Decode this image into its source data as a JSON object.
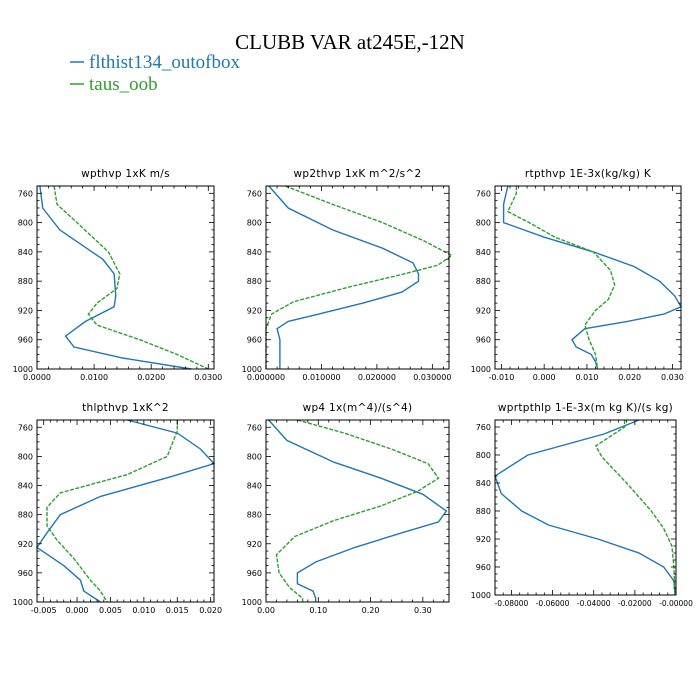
{
  "figure": {
    "title": "CLUBB VAR at245E,-12N",
    "colors": {
      "series_1": "#1f77b4",
      "series_2": "#2ca02c"
    },
    "legend": [
      "flthist134_outofbox",
      "taus_oob"
    ]
  },
  "chart_data": [
    {
      "type": "line",
      "title": "wpthvp   1xK m/s",
      "y_ticks": [
        760,
        800,
        840,
        880,
        920,
        960,
        1000
      ],
      "y_range": [
        1000,
        750
      ],
      "x_range": [
        0.0,
        0.031
      ],
      "x_ticks": [
        0.0,
        0.01,
        0.02,
        0.03
      ],
      "x_tick_labels": [
        "0.0000",
        "0.0100",
        "0.0200",
        "0.0300"
      ],
      "series": [
        {
          "values": [
            {
              "x": 0.0005,
              "y": 750
            },
            {
              "x": 0.001,
              "y": 780
            },
            {
              "x": 0.004,
              "y": 810
            },
            {
              "x": 0.0115,
              "y": 850
            },
            {
              "x": 0.0135,
              "y": 870
            },
            {
              "x": 0.0138,
              "y": 900
            },
            {
              "x": 0.0135,
              "y": 915
            },
            {
              "x": 0.0085,
              "y": 935
            },
            {
              "x": 0.005,
              "y": 955
            },
            {
              "x": 0.0065,
              "y": 970
            },
            {
              "x": 0.015,
              "y": 985
            },
            {
              "x": 0.027,
              "y": 1000
            }
          ]
        },
        {
          "values": [
            {
              "x": 0.003,
              "y": 750
            },
            {
              "x": 0.0035,
              "y": 775
            },
            {
              "x": 0.007,
              "y": 800
            },
            {
              "x": 0.0125,
              "y": 840
            },
            {
              "x": 0.0145,
              "y": 870
            },
            {
              "x": 0.014,
              "y": 890
            },
            {
              "x": 0.0105,
              "y": 910
            },
            {
              "x": 0.009,
              "y": 925
            },
            {
              "x": 0.0105,
              "y": 940
            },
            {
              "x": 0.018,
              "y": 960
            },
            {
              "x": 0.0245,
              "y": 980
            },
            {
              "x": 0.03,
              "y": 1000
            }
          ]
        }
      ]
    },
    {
      "type": "line",
      "title": "wp2thvp   1xK m^2/s^2",
      "y_ticks": [
        760,
        800,
        840,
        880,
        920,
        960,
        1000
      ],
      "y_range": [
        1000,
        750
      ],
      "x_range": [
        0.0,
        0.033
      ],
      "x_ticks": [
        0.0,
        0.01,
        0.02,
        0.03
      ],
      "x_tick_labels": [
        "0.000000",
        "0.010000",
        "0.020000",
        "0.030000"
      ],
      "series": [
        {
          "values": [
            {
              "x": 0.0005,
              "y": 750
            },
            {
              "x": 0.004,
              "y": 780
            },
            {
              "x": 0.012,
              "y": 810
            },
            {
              "x": 0.021,
              "y": 835
            },
            {
              "x": 0.0265,
              "y": 855
            },
            {
              "x": 0.0275,
              "y": 870
            },
            {
              "x": 0.0275,
              "y": 880
            },
            {
              "x": 0.0245,
              "y": 895
            },
            {
              "x": 0.0175,
              "y": 910
            },
            {
              "x": 0.0095,
              "y": 925
            },
            {
              "x": 0.004,
              "y": 935
            },
            {
              "x": 0.002,
              "y": 945
            },
            {
              "x": 0.0025,
              "y": 960
            },
            {
              "x": 0.0025,
              "y": 980
            },
            {
              "x": 0.0025,
              "y": 1000
            }
          ]
        },
        {
          "values": [
            {
              "x": 0.0035,
              "y": 750
            },
            {
              "x": 0.012,
              "y": 775
            },
            {
              "x": 0.021,
              "y": 800
            },
            {
              "x": 0.0285,
              "y": 825
            },
            {
              "x": 0.0335,
              "y": 845
            },
            {
              "x": 0.031,
              "y": 858
            },
            {
              "x": 0.025,
              "y": 870
            },
            {
              "x": 0.015,
              "y": 888
            },
            {
              "x": 0.005,
              "y": 908
            },
            {
              "x": 0.001,
              "y": 925
            },
            {
              "x": 0.0,
              "y": 945
            },
            {
              "x": 0.0,
              "y": 970
            },
            {
              "x": 0.0,
              "y": 1000
            }
          ]
        }
      ]
    },
    {
      "type": "line",
      "title": "rtpthvp   1E-3x(kg/kg) K",
      "y_ticks": [
        760,
        800,
        840,
        880,
        920,
        960,
        1000
      ],
      "y_range": [
        1000,
        750
      ],
      "x_range": [
        -0.0115,
        0.032
      ],
      "x_ticks": [
        -0.01,
        0.0,
        0.01,
        0.02,
        0.03
      ],
      "x_tick_labels": [
        "-0.010",
        "0.000",
        "0.010",
        "0.020",
        "0.030"
      ],
      "series": [
        {
          "values": [
            {
              "x": -0.0085,
              "y": 750
            },
            {
              "x": -0.0095,
              "y": 775
            },
            {
              "x": -0.0095,
              "y": 800
            },
            {
              "x": 0.0,
              "y": 820
            },
            {
              "x": 0.0115,
              "y": 840
            },
            {
              "x": 0.021,
              "y": 860
            },
            {
              "x": 0.027,
              "y": 880
            },
            {
              "x": 0.0305,
              "y": 900
            },
            {
              "x": 0.032,
              "y": 915
            },
            {
              "x": 0.028,
              "y": 925
            },
            {
              "x": 0.0195,
              "y": 935
            },
            {
              "x": 0.0095,
              "y": 945
            },
            {
              "x": 0.0065,
              "y": 960
            },
            {
              "x": 0.0075,
              "y": 970
            },
            {
              "x": 0.011,
              "y": 980
            },
            {
              "x": 0.012,
              "y": 990
            },
            {
              "x": 0.0125,
              "y": 1000
            }
          ]
        },
        {
          "values": [
            {
              "x": -0.0065,
              "y": 750
            },
            {
              "x": -0.0065,
              "y": 760
            },
            {
              "x": -0.0085,
              "y": 785
            },
            {
              "x": -0.0035,
              "y": 800
            },
            {
              "x": 0.0025,
              "y": 820
            },
            {
              "x": 0.0115,
              "y": 840
            },
            {
              "x": 0.0155,
              "y": 865
            },
            {
              "x": 0.0165,
              "y": 885
            },
            {
              "x": 0.015,
              "y": 905
            },
            {
              "x": 0.012,
              "y": 920
            },
            {
              "x": 0.0095,
              "y": 940
            },
            {
              "x": 0.0105,
              "y": 960
            },
            {
              "x": 0.012,
              "y": 980
            },
            {
              "x": 0.0125,
              "y": 1000
            }
          ]
        }
      ]
    },
    {
      "type": "line",
      "title": "thlpthvp   1xK^2",
      "y_ticks": [
        760,
        800,
        840,
        880,
        920,
        960,
        1000
      ],
      "y_range": [
        1000,
        750
      ],
      "x_range": [
        -0.006,
        0.0205
      ],
      "x_ticks": [
        -0.005,
        0.0,
        0.005,
        0.01,
        0.015,
        0.02
      ],
      "x_tick_labels": [
        "-0.005",
        "0.000",
        "0.005",
        "0.010",
        "0.015",
        "0.020"
      ],
      "series": [
        {
          "values": [
            {
              "x": 0.0075,
              "y": 750
            },
            {
              "x": 0.015,
              "y": 768
            },
            {
              "x": 0.0185,
              "y": 790
            },
            {
              "x": 0.0205,
              "y": 810
            },
            {
              "x": 0.014,
              "y": 828
            },
            {
              "x": 0.0035,
              "y": 855
            },
            {
              "x": -0.0025,
              "y": 880
            },
            {
              "x": -0.0045,
              "y": 905
            },
            {
              "x": -0.006,
              "y": 925
            },
            {
              "x": -0.002,
              "y": 950
            },
            {
              "x": 0.0005,
              "y": 970
            },
            {
              "x": 0.001,
              "y": 985
            },
            {
              "x": 0.0035,
              "y": 1000
            }
          ]
        },
        {
          "values": [
            {
              "x": 0.015,
              "y": 750
            },
            {
              "x": 0.015,
              "y": 765
            },
            {
              "x": 0.0135,
              "y": 800
            },
            {
              "x": 0.0075,
              "y": 825
            },
            {
              "x": -0.0025,
              "y": 850
            },
            {
              "x": -0.0045,
              "y": 870
            },
            {
              "x": -0.0045,
              "y": 895
            },
            {
              "x": -0.003,
              "y": 915
            },
            {
              "x": -0.0005,
              "y": 940
            },
            {
              "x": 0.002,
              "y": 970
            },
            {
              "x": 0.0035,
              "y": 985
            },
            {
              "x": 0.0045,
              "y": 1000
            }
          ]
        }
      ]
    },
    {
      "type": "line",
      "title": "wp4   1x(m^4)/(s^4)",
      "y_ticks": [
        760,
        800,
        840,
        880,
        920,
        960,
        1000
      ],
      "y_range": [
        1000,
        750
      ],
      "x_range": [
        0.0,
        0.35
      ],
      "x_ticks": [
        0.0,
        0.1,
        0.2,
        0.3
      ],
      "x_tick_labels": [
        "0.00",
        "0.10",
        "0.20",
        "0.30"
      ],
      "series": [
        {
          "values": [
            {
              "x": 0.005,
              "y": 750
            },
            {
              "x": 0.04,
              "y": 778
            },
            {
              "x": 0.13,
              "y": 808
            },
            {
              "x": 0.22,
              "y": 830
            },
            {
              "x": 0.3,
              "y": 852
            },
            {
              "x": 0.345,
              "y": 875
            },
            {
              "x": 0.33,
              "y": 890
            },
            {
              "x": 0.26,
              "y": 905
            },
            {
              "x": 0.17,
              "y": 925
            },
            {
              "x": 0.095,
              "y": 945
            },
            {
              "x": 0.06,
              "y": 960
            },
            {
              "x": 0.06,
              "y": 975
            },
            {
              "x": 0.09,
              "y": 985
            },
            {
              "x": 0.095,
              "y": 995
            },
            {
              "x": 0.095,
              "y": 1000
            }
          ]
        },
        {
          "values": [
            {
              "x": 0.06,
              "y": 750
            },
            {
              "x": 0.15,
              "y": 768
            },
            {
              "x": 0.24,
              "y": 790
            },
            {
              "x": 0.31,
              "y": 810
            },
            {
              "x": 0.33,
              "y": 830
            },
            {
              "x": 0.29,
              "y": 848
            },
            {
              "x": 0.22,
              "y": 868
            },
            {
              "x": 0.13,
              "y": 888
            },
            {
              "x": 0.055,
              "y": 910
            },
            {
              "x": 0.02,
              "y": 935
            },
            {
              "x": 0.025,
              "y": 960
            },
            {
              "x": 0.045,
              "y": 980
            },
            {
              "x": 0.07,
              "y": 995
            },
            {
              "x": 0.07,
              "y": 1000
            }
          ]
        }
      ]
    },
    {
      "type": "line",
      "title": "wprtpthlp   1-E-3x(m kg K)/(s kg)",
      "y_ticks": [
        760,
        800,
        840,
        880,
        920,
        960,
        1000
      ],
      "y_range": [
        1000,
        750
      ],
      "x_range": [
        -0.088,
        0.0
      ],
      "x_ticks": [
        -0.08,
        -0.06,
        -0.04,
        -0.02,
        0.0
      ],
      "x_tick_labels": [
        "-0.08000",
        "-0.06000",
        "-0.04000",
        "-0.02000",
        "-0.00000"
      ],
      "series": [
        {
          "values": [
            {
              "x": -0.018,
              "y": 750
            },
            {
              "x": -0.035,
              "y": 770
            },
            {
              "x": -0.072,
              "y": 800
            },
            {
              "x": -0.088,
              "y": 830
            },
            {
              "x": -0.085,
              "y": 855
            },
            {
              "x": -0.075,
              "y": 880
            },
            {
              "x": -0.062,
              "y": 900
            },
            {
              "x": -0.038,
              "y": 920
            },
            {
              "x": -0.018,
              "y": 940
            },
            {
              "x": -0.006,
              "y": 960
            },
            {
              "x": -0.001,
              "y": 980
            },
            {
              "x": -0.0005,
              "y": 1000
            }
          ]
        },
        {
          "values": [
            {
              "x": -0.025,
              "y": 750
            },
            {
              "x": -0.025,
              "y": 760
            },
            {
              "x": -0.039,
              "y": 787
            },
            {
              "x": -0.036,
              "y": 803
            },
            {
              "x": -0.024,
              "y": 840
            },
            {
              "x": -0.012,
              "y": 880
            },
            {
              "x": -0.006,
              "y": 905
            },
            {
              "x": -0.002,
              "y": 930
            },
            {
              "x": -0.001,
              "y": 960
            },
            {
              "x": -0.0005,
              "y": 1000
            }
          ]
        }
      ]
    }
  ]
}
